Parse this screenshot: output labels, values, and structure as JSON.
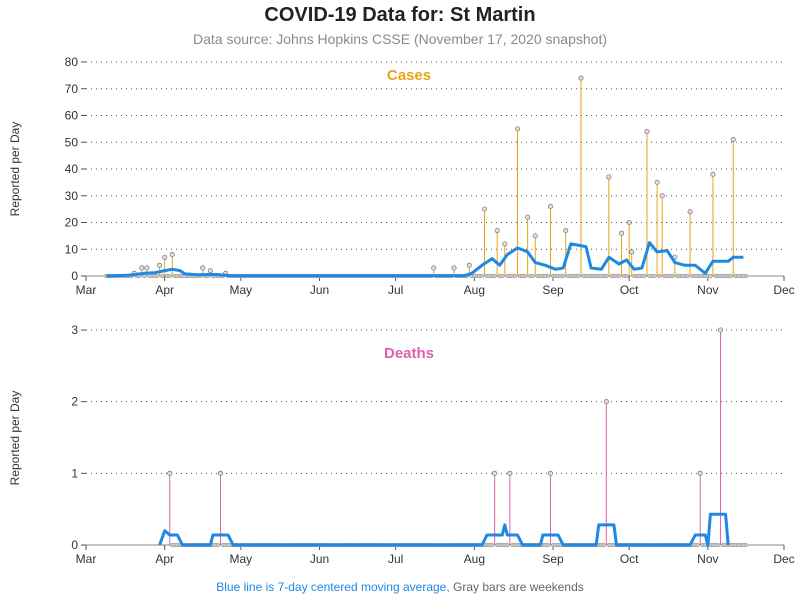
{
  "title": "COVID-19 Data for: St Martin",
  "subtitle": "Data source: Johns Hopkins CSSE (November 17, 2020 snapshot)",
  "footer": {
    "blue_text": "Blue line is 7-day centered moving average,",
    "gray_text": "Gray bars are weekends"
  },
  "colors": {
    "cases": "#e8a317",
    "deaths": "#e060b0",
    "moving_average": "#1e88e5",
    "weekend": "#888888",
    "marker": "#999999"
  },
  "chart_data": [
    {
      "type": "bar",
      "title": "Cases",
      "ylabel": "Reported per Day",
      "ylim": [
        0,
        80
      ],
      "yticks": [
        "0",
        "10",
        "20",
        "30",
        "40",
        "50",
        "60",
        "70",
        "80"
      ],
      "xlim": [
        "2020-03-01",
        "2020-12-01"
      ],
      "xticks": [
        "Mar",
        "Apr",
        "May",
        "Jun",
        "Jul",
        "Aug",
        "Sep",
        "Oct",
        "Nov",
        "Dec"
      ],
      "grid": "horizontal dotted",
      "series": [
        {
          "points": [
            [
              "2020-03-20",
              1
            ],
            [
              "2020-03-23",
              3
            ],
            [
              "2020-03-25",
              3
            ],
            [
              "2020-03-30",
              4
            ],
            [
              "2020-04-01",
              7
            ],
            [
              "2020-04-04",
              8
            ],
            [
              "2020-04-16",
              3
            ],
            [
              "2020-04-19",
              2
            ],
            [
              "2020-04-25",
              1
            ],
            [
              "2020-07-16",
              3
            ],
            [
              "2020-07-24",
              3
            ],
            [
              "2020-07-30",
              4
            ],
            [
              "2020-08-05",
              25
            ],
            [
              "2020-08-10",
              17
            ],
            [
              "2020-08-13",
              12
            ],
            [
              "2020-08-18",
              55
            ],
            [
              "2020-08-22",
              22
            ],
            [
              "2020-08-25",
              15
            ],
            [
              "2020-08-31",
              26
            ],
            [
              "2020-09-06",
              17
            ],
            [
              "2020-09-12",
              74
            ],
            [
              "2020-09-23",
              37
            ],
            [
              "2020-09-28",
              16
            ],
            [
              "2020-10-01",
              20
            ],
            [
              "2020-10-02",
              9
            ],
            [
              "2020-10-08",
              54
            ],
            [
              "2020-10-12",
              35
            ],
            [
              "2020-10-14",
              30
            ],
            [
              "2020-10-19",
              7
            ],
            [
              "2020-10-25",
              24
            ],
            [
              "2020-11-03",
              38
            ],
            [
              "2020-11-11",
              51
            ]
          ]
        },
        {
          "name": "7-day centered moving average",
          "points": [
            [
              "2020-03-09",
              0
            ],
            [
              "2020-03-18",
              0.3
            ],
            [
              "2020-03-24",
              1
            ],
            [
              "2020-03-28",
              1.2
            ],
            [
              "2020-04-01",
              2
            ],
            [
              "2020-04-04",
              2.5
            ],
            [
              "2020-04-07",
              2.0
            ],
            [
              "2020-04-09",
              0.8
            ],
            [
              "2020-04-14",
              0.5
            ],
            [
              "2020-04-21",
              0.6
            ],
            [
              "2020-04-27",
              0.1
            ],
            [
              "2020-07-28",
              0.1
            ],
            [
              "2020-07-31",
              1
            ],
            [
              "2020-08-04",
              4
            ],
            [
              "2020-08-08",
              6.5
            ],
            [
              "2020-08-11",
              4
            ],
            [
              "2020-08-14",
              8
            ],
            [
              "2020-08-18",
              10.5
            ],
            [
              "2020-08-22",
              9
            ],
            [
              "2020-08-25",
              5
            ],
            [
              "2020-08-29",
              4
            ],
            [
              "2020-09-02",
              2.5
            ],
            [
              "2020-09-05",
              3
            ],
            [
              "2020-09-08",
              12
            ],
            [
              "2020-09-14",
              11
            ],
            [
              "2020-09-16",
              3
            ],
            [
              "2020-09-20",
              2.5
            ],
            [
              "2020-09-23",
              7
            ],
            [
              "2020-09-27",
              4.5
            ],
            [
              "2020-09-30",
              6
            ],
            [
              "2020-10-03",
              2.5
            ],
            [
              "2020-10-06",
              3
            ],
            [
              "2020-10-09",
              12.5
            ],
            [
              "2020-10-12",
              9
            ],
            [
              "2020-10-16",
              9.5
            ],
            [
              "2020-10-19",
              5
            ],
            [
              "2020-10-23",
              4
            ],
            [
              "2020-10-27",
              4
            ],
            [
              "2020-10-31",
              1
            ],
            [
              "2020-11-03",
              5.5
            ],
            [
              "2020-11-09",
              5.5
            ],
            [
              "2020-11-11",
              7
            ],
            [
              "2020-11-15",
              7
            ]
          ]
        }
      ]
    },
    {
      "type": "bar",
      "title": "Deaths",
      "ylabel": "Reported per Day",
      "ylim": [
        0,
        3
      ],
      "yticks": [
        "0",
        "1",
        "2",
        "3"
      ],
      "xlim": [
        "2020-03-01",
        "2020-12-01"
      ],
      "xticks": [
        "Mar",
        "Apr",
        "May",
        "Jun",
        "Jul",
        "Aug",
        "Sep",
        "Oct",
        "Nov",
        "Dec"
      ],
      "grid": "horizontal dotted",
      "series": [
        {
          "points": [
            [
              "2020-04-03",
              1
            ],
            [
              "2020-04-23",
              1
            ],
            [
              "2020-08-09",
              1
            ],
            [
              "2020-08-15",
              1
            ],
            [
              "2020-08-31",
              1
            ],
            [
              "2020-09-22",
              2
            ],
            [
              "2020-10-29",
              1
            ],
            [
              "2020-11-06",
              3
            ]
          ]
        },
        {
          "name": "7-day centered moving average",
          "points": [
            [
              "2020-03-30",
              0
            ],
            [
              "2020-04-01",
              0.2
            ],
            [
              "2020-04-03",
              0.14
            ],
            [
              "2020-04-06",
              0.14
            ],
            [
              "2020-04-08",
              0
            ],
            [
              "2020-04-19",
              0
            ],
            [
              "2020-04-20",
              0.14
            ],
            [
              "2020-04-26",
              0.14
            ],
            [
              "2020-04-28",
              0
            ],
            [
              "2020-08-04",
              0
            ],
            [
              "2020-08-06",
              0.14
            ],
            [
              "2020-08-12",
              0.14
            ],
            [
              "2020-08-13",
              0.28
            ],
            [
              "2020-08-14",
              0.14
            ],
            [
              "2020-08-18",
              0.14
            ],
            [
              "2020-08-20",
              0
            ],
            [
              "2020-08-27",
              0
            ],
            [
              "2020-08-28",
              0.14
            ],
            [
              "2020-09-03",
              0.14
            ],
            [
              "2020-09-05",
              0
            ],
            [
              "2020-09-18",
              0
            ],
            [
              "2020-09-19",
              0.28
            ],
            [
              "2020-09-25",
              0.28
            ],
            [
              "2020-09-26",
              0
            ],
            [
              "2020-10-25",
              0
            ],
            [
              "2020-10-27",
              0.14
            ],
            [
              "2020-10-31",
              0.14
            ],
            [
              "2020-11-01",
              0
            ],
            [
              "2020-11-02",
              0.43
            ],
            [
              "2020-11-08",
              0.43
            ],
            [
              "2020-11-09",
              0
            ]
          ]
        }
      ]
    }
  ]
}
